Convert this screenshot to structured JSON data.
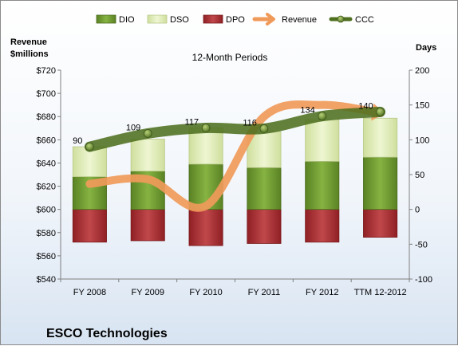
{
  "chart_data": {
    "type": "bar",
    "title": "12-Month Periods",
    "company": "ESCO Technologies",
    "left_axis_label": [
      "Revenue",
      "$millions"
    ],
    "right_axis_label": "Days",
    "categories": [
      "FY 2008",
      "FY 2009",
      "FY 2010",
      "FY 2011",
      "FY 2012",
      "TTM 12-2012"
    ],
    "left_axis": {
      "min": 540,
      "max": 720,
      "step": 20,
      "prefix": "$"
    },
    "right_axis": {
      "min": -100,
      "max": 200,
      "step": 50
    },
    "series": [
      {
        "name": "DIO",
        "kind": "stacked-bar",
        "axis": "right",
        "color": "#6e9a2c",
        "values": [
          47,
          55,
          65,
          60,
          69,
          75
        ]
      },
      {
        "name": "DSO",
        "kind": "stacked-bar",
        "axis": "right",
        "color": "#dce9b2",
        "values": [
          43,
          46,
          52,
          52,
          60,
          56
        ]
      },
      {
        "name": "DPO",
        "kind": "bar-negative",
        "axis": "right",
        "color": "#a3282c",
        "values": [
          -47,
          -45,
          -52,
          -49,
          -47,
          -40
        ]
      },
      {
        "name": "Revenue",
        "kind": "line",
        "axis": "left",
        "color": "#f09a5a",
        "values": [
          622,
          626,
          603,
          680,
          690,
          683
        ]
      },
      {
        "name": "CCC",
        "kind": "line",
        "axis": "right",
        "color": "#4f7020",
        "values": [
          90,
          109,
          117,
          116,
          134,
          140
        ]
      }
    ],
    "ccc_labels": [
      "90",
      "109",
      "117",
      "116",
      "134",
      "140"
    ],
    "legend_position": "top",
    "grid": false
  }
}
